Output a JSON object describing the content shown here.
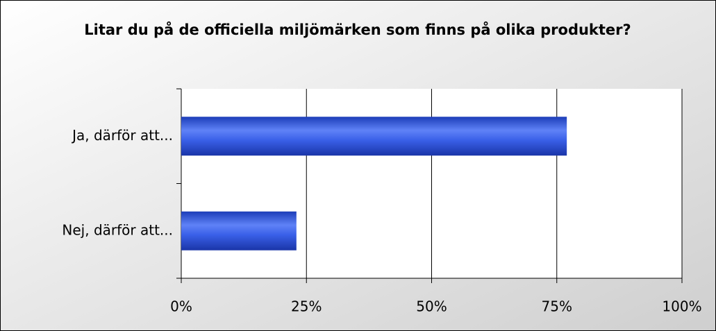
{
  "chart_data": {
    "type": "bar",
    "orientation": "horizontal",
    "title": "Litar du på de officiella miljömärken som finns på olika produkter?",
    "categories": [
      "Ja, därför att...",
      "Nej, därför att..."
    ],
    "values": [
      77,
      23
    ],
    "color": "#2f55e0",
    "xlim": [
      0,
      100
    ],
    "xticks": [
      {
        "value": 0,
        "label": "0%"
      },
      {
        "value": 25,
        "label": "25%"
      },
      {
        "value": 50,
        "label": "50%"
      },
      {
        "value": 75,
        "label": "75%"
      },
      {
        "value": 100,
        "label": "100%"
      }
    ],
    "grid": true
  }
}
